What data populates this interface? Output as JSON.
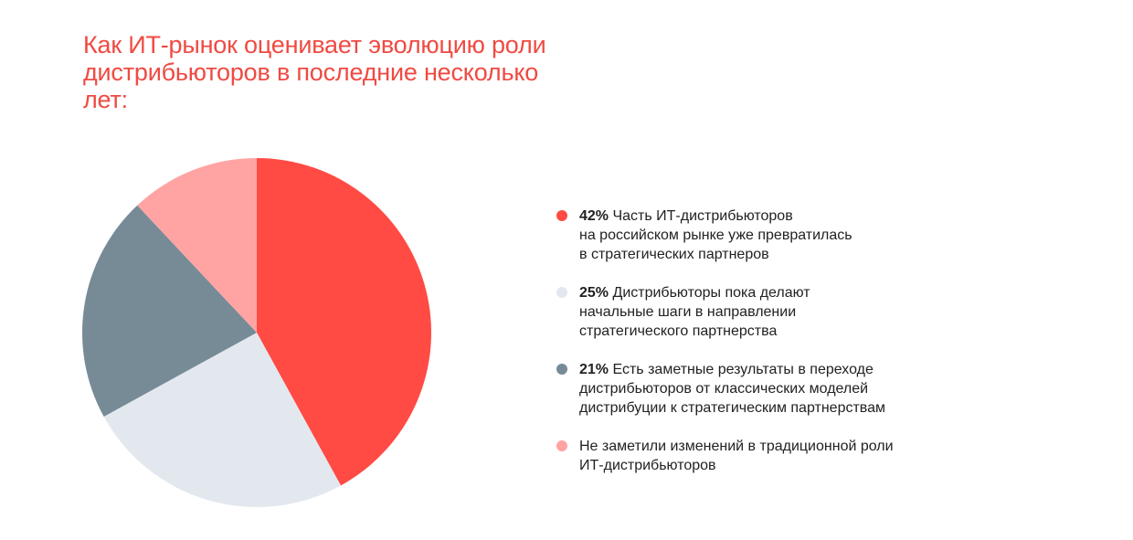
{
  "title": "Как ИТ-рынок оценивает эволюцию роли дистрибьюторов в последние несколько лет:",
  "chart_data": {
    "type": "pie",
    "title": "Как ИТ-рынок оценивает эволюцию роли дистрибьюторов в последние несколько лет:",
    "slices": [
      {
        "percent_label": "42%",
        "value": 42,
        "label": "Часть ИТ-дистрибьюторов\nна российском рынке уже превратилась\nв стратегических партнеров",
        "color": "#ff4b44"
      },
      {
        "percent_label": "25%",
        "value": 25,
        "label": "Дистрибьюторы пока делают\nначальные шаги в направлении\nстратегического партнерства",
        "color": "#e3e8ef"
      },
      {
        "percent_label": "21%",
        "value": 21,
        "label": "Есть заметные результаты в переходе\nдистрибьюторов от классических моделей\nдистрибуции к стратегическим партнерствам",
        "color": "#778b97"
      },
      {
        "percent_label": "",
        "value": 12,
        "label": "Не заметили изменений в традиционной роли\nИТ-дистрибьюторов",
        "color": "#ffa4a3"
      }
    ],
    "legend_position": "right"
  }
}
